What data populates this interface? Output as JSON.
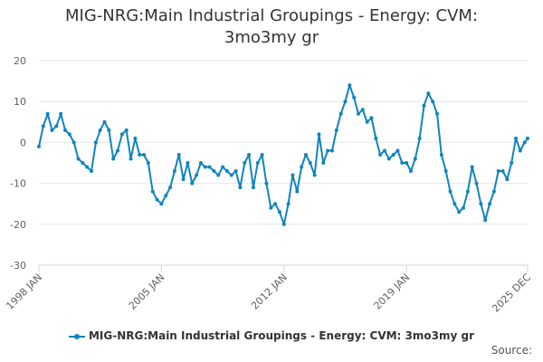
{
  "title_line1": "MIG-NRG:Main Industrial Groupings - Energy: CVM:",
  "title_line2": "3mo3my gr",
  "legend_label": "MIG-NRG:Main Industrial Groupings - Energy: CVM: 3mo3my gr",
  "source_label": "Source:",
  "colors": {
    "series": "#0f84be",
    "grid": "#e6e6e6",
    "axis": "#ccd6eb"
  },
  "chart_data": {
    "type": "line",
    "title": "MIG-NRG:Main Industrial Groupings - Energy: CVM: 3mo3my gr",
    "ylim": [
      -30,
      20
    ],
    "yticks": [
      20,
      10,
      0,
      -10,
      -20,
      -30
    ],
    "xlim": [
      1998.0,
      2025.92
    ],
    "xtick_labels": [
      "1998 JAN",
      "2005 JAN",
      "2012 JAN",
      "2019 JAN",
      "2025 DEC"
    ],
    "xtick_values": [
      1998.0,
      2005.0,
      2012.0,
      2019.0,
      2025.92
    ],
    "grid": true,
    "legend_position": "bottom",
    "series": [
      {
        "name": "MIG-NRG:Main Industrial Groupings - Energy: CVM: 3mo3my gr",
        "points": [
          [
            1998.0,
            -1
          ],
          [
            1998.25,
            4
          ],
          [
            1998.5,
            7
          ],
          [
            1998.75,
            3
          ],
          [
            1999.0,
            4
          ],
          [
            1999.25,
            7
          ],
          [
            1999.5,
            3
          ],
          [
            1999.75,
            2
          ],
          [
            2000.0,
            0
          ],
          [
            2000.25,
            -4
          ],
          [
            2000.5,
            -5
          ],
          [
            2000.75,
            -6
          ],
          [
            2001.0,
            -7
          ],
          [
            2001.25,
            0
          ],
          [
            2001.5,
            3
          ],
          [
            2001.75,
            5
          ],
          [
            2002.0,
            3
          ],
          [
            2002.25,
            -4
          ],
          [
            2002.5,
            -2
          ],
          [
            2002.75,
            2
          ],
          [
            2003.0,
            3
          ],
          [
            2003.25,
            -4
          ],
          [
            2003.5,
            1
          ],
          [
            2003.75,
            -3
          ],
          [
            2004.0,
            -3
          ],
          [
            2004.25,
            -5
          ],
          [
            2004.5,
            -12
          ],
          [
            2004.75,
            -14
          ],
          [
            2005.0,
            -15
          ],
          [
            2005.25,
            -13
          ],
          [
            2005.5,
            -11
          ],
          [
            2005.75,
            -7
          ],
          [
            2006.0,
            -3
          ],
          [
            2006.25,
            -9
          ],
          [
            2006.5,
            -5
          ],
          [
            2006.75,
            -10
          ],
          [
            2007.0,
            -8
          ],
          [
            2007.25,
            -5
          ],
          [
            2007.5,
            -6
          ],
          [
            2007.75,
            -6
          ],
          [
            2008.0,
            -7
          ],
          [
            2008.25,
            -8
          ],
          [
            2008.5,
            -6
          ],
          [
            2008.75,
            -7
          ],
          [
            2009.0,
            -8
          ],
          [
            2009.25,
            -7
          ],
          [
            2009.5,
            -11
          ],
          [
            2009.75,
            -5
          ],
          [
            2010.0,
            -3
          ],
          [
            2010.25,
            -11
          ],
          [
            2010.5,
            -5
          ],
          [
            2010.75,
            -3
          ],
          [
            2011.0,
            -10
          ],
          [
            2011.25,
            -16
          ],
          [
            2011.5,
            -15
          ],
          [
            2011.75,
            -17
          ],
          [
            2012.0,
            -20
          ],
          [
            2012.25,
            -15
          ],
          [
            2012.5,
            -8
          ],
          [
            2012.75,
            -12
          ],
          [
            2013.0,
            -6
          ],
          [
            2013.25,
            -3
          ],
          [
            2013.5,
            -5
          ],
          [
            2013.75,
            -8
          ],
          [
            2014.0,
            2
          ],
          [
            2014.25,
            -5
          ],
          [
            2014.5,
            -2
          ],
          [
            2014.75,
            -2
          ],
          [
            2015.0,
            3
          ],
          [
            2015.25,
            7
          ],
          [
            2015.5,
            10
          ],
          [
            2015.75,
            14
          ],
          [
            2016.0,
            11
          ],
          [
            2016.25,
            7
          ],
          [
            2016.5,
            8
          ],
          [
            2016.75,
            5
          ],
          [
            2017.0,
            6
          ],
          [
            2017.25,
            1
          ],
          [
            2017.5,
            -3
          ],
          [
            2017.75,
            -2
          ],
          [
            2018.0,
            -4
          ],
          [
            2018.25,
            -3
          ],
          [
            2018.5,
            -2
          ],
          [
            2018.75,
            -5
          ],
          [
            2019.0,
            -5
          ],
          [
            2019.25,
            -7
          ],
          [
            2019.5,
            -4
          ],
          [
            2019.75,
            1
          ],
          [
            2020.0,
            9
          ],
          [
            2020.25,
            12
          ],
          [
            2020.5,
            10
          ],
          [
            2020.75,
            7
          ],
          [
            2021.0,
            -3
          ],
          [
            2021.25,
            -7
          ],
          [
            2021.5,
            -12
          ],
          [
            2021.75,
            -15
          ],
          [
            2022.0,
            -17
          ],
          [
            2022.25,
            -16
          ],
          [
            2022.5,
            -12
          ],
          [
            2022.75,
            -6
          ],
          [
            2023.0,
            -10
          ],
          [
            2023.25,
            -15
          ],
          [
            2023.5,
            -19
          ],
          [
            2023.75,
            -15
          ],
          [
            2024.0,
            -12
          ],
          [
            2024.25,
            -7
          ],
          [
            2024.5,
            -7
          ],
          [
            2024.75,
            -9
          ],
          [
            2025.0,
            -5
          ],
          [
            2025.25,
            1
          ],
          [
            2025.5,
            -2
          ],
          [
            2025.75,
            0
          ],
          [
            2025.92,
            1
          ]
        ]
      }
    ]
  }
}
